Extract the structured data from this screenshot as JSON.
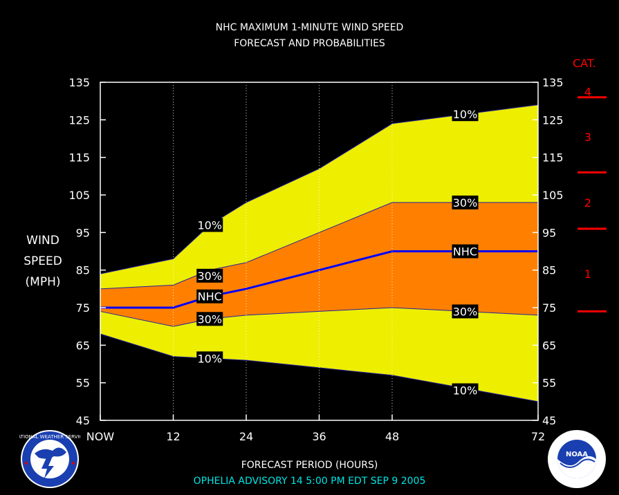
{
  "chart_data": {
    "type": "area",
    "title": "NHC MAXIMUM 1-MINUTE WIND SPEED",
    "subtitle": "FORECAST AND PROBABILITIES",
    "ylabel": [
      "WIND",
      "SPEED",
      "(MPH)"
    ],
    "xlabel": "FORECAST PERIOD (HOURS)",
    "ylim": [
      45,
      135
    ],
    "xlim": [
      0,
      72
    ],
    "y_ticks": [
      45,
      55,
      65,
      75,
      85,
      95,
      105,
      115,
      125,
      135
    ],
    "x_ticks": [
      {
        "x": 0,
        "label": "NOW"
      },
      {
        "x": 12,
        "label": "12"
      },
      {
        "x": 24,
        "label": "24"
      },
      {
        "x": 36,
        "label": "36"
      },
      {
        "x": 48,
        "label": "48"
      },
      {
        "x": 72,
        "label": "72"
      }
    ],
    "grid_x": [
      12,
      24,
      36,
      48
    ],
    "x": [
      0,
      12,
      18,
      24,
      36,
      48,
      72
    ],
    "series": [
      {
        "name": "10%",
        "role": "upper_outer",
        "color": "#eeee00",
        "values": [
          84,
          88,
          97,
          103,
          112,
          124,
          129
        ]
      },
      {
        "name": "30%",
        "role": "upper_inner",
        "color": "#ff8000",
        "values": [
          80,
          81,
          85,
          87,
          95,
          103,
          103
        ]
      },
      {
        "name": "NHC",
        "role": "forecast",
        "color": "#0000ff",
        "values": [
          75,
          75,
          78,
          80,
          85,
          90,
          90
        ]
      },
      {
        "name": "30%",
        "role": "lower_inner",
        "color": "#ff8000",
        "values": [
          74,
          70,
          72,
          73,
          74,
          75,
          73
        ]
      },
      {
        "name": "10%",
        "role": "lower_outer",
        "color": "#eeee00",
        "values": [
          68,
          62,
          61.5,
          61,
          59,
          57,
          50
        ]
      }
    ],
    "labels": [
      {
        "text": "10%",
        "x": 18,
        "y": 97
      },
      {
        "text": "30%",
        "x": 18,
        "y": 83.5
      },
      {
        "text": "NHC",
        "x": 18,
        "y": 78
      },
      {
        "text": "30%",
        "x": 18,
        "y": 72
      },
      {
        "text": "10%",
        "x": 18,
        "y": 61.5
      },
      {
        "text": "10%",
        "x": 60,
        "y": 126.5
      },
      {
        "text": "30%",
        "x": 60,
        "y": 103
      },
      {
        "text": "NHC",
        "x": 60,
        "y": 90
      },
      {
        "text": "30%",
        "x": 60,
        "y": 74
      },
      {
        "text": "10%",
        "x": 60,
        "y": 53
      }
    ],
    "categories_scale": {
      "title": "CAT.",
      "thresholds": [
        74,
        96,
        111,
        131
      ],
      "labels": [
        {
          "text": "1",
          "y": 84
        },
        {
          "text": "2",
          "y": 103
        },
        {
          "text": "3",
          "y": 120.5
        },
        {
          "text": "4",
          "y": 132.5
        }
      ]
    }
  },
  "footer": {
    "advisory": "OPHELIA   ADVISORY  14 5:00  PM  EDT  SEP  9  2005"
  },
  "logos": {
    "left": "NATIONAL WEATHER SERVICE",
    "right": "NOAA"
  },
  "colors": {
    "background": "#000000",
    "outer_band": "#eeee00",
    "inner_band": "#ff8000",
    "forecast_line": "#0000ff",
    "category": "#ff0000",
    "footer_text": "#00e5e5"
  }
}
